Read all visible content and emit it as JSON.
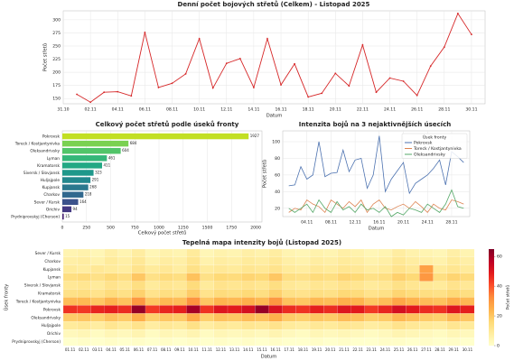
{
  "chart_data": [
    {
      "type": "line",
      "title": "Denní počet bojových střetů (Celkem) - Listopad 2025",
      "xlabel": "Datum",
      "ylabel": "Počet střetů",
      "color": "#d62728",
      "markers": true,
      "grid": true,
      "x": [
        "01.11",
        "02.11",
        "03.11",
        "04.11",
        "05.11",
        "06.11",
        "07.11",
        "08.11",
        "09.11",
        "10.11",
        "11.11",
        "12.11",
        "13.11",
        "14.11",
        "15.11",
        "16.11",
        "17.11",
        "18.11",
        "19.11",
        "20.11",
        "21.11",
        "22.11",
        "23.11",
        "24.11",
        "25.11",
        "26.11",
        "27.11",
        "28.11",
        "29.11",
        "30.11"
      ],
      "values": [
        158,
        143,
        162,
        163,
        155,
        276,
        171,
        179,
        197,
        264,
        170,
        217,
        226,
        171,
        264,
        176,
        216,
        153,
        160,
        198,
        174,
        252,
        162,
        189,
        183,
        156,
        212,
        248,
        312,
        272
      ],
      "xlim": [
        "31.10",
        "01.12"
      ],
      "xticks": [
        "31.10",
        "02.11",
        "04.11",
        "06.11",
        "08.11",
        "10.11",
        "12.11",
        "14.11",
        "16.11",
        "18.11",
        "20.11",
        "22.11",
        "24.11",
        "26.11",
        "28.11",
        "30.11"
      ],
      "ylim": [
        140,
        317
      ],
      "yticks": [
        150,
        175,
        200,
        225,
        250,
        275,
        300
      ]
    },
    {
      "type": "bar",
      "orientation": "horizontal",
      "title": "Celkový počet střetů podle úseků fronty",
      "xlabel": "Celkový počet střetů",
      "grid": true,
      "categories": [
        "Pokrovsk",
        "Toreck / Kostjantynivka",
        "Oleksandrivsky",
        "Lyman",
        "Kramatorsk",
        "Siversk / Slovjansk",
        "Huljajpole",
        "Kupjansk",
        "Charkov",
        "Sever / Kursk",
        "Orichiv",
        "Prydniprovskyj (Cherson)"
      ],
      "values": [
        1927,
        684,
        604,
        461,
        411,
        323,
        291,
        268,
        218,
        164,
        94,
        15
      ],
      "colors": [
        "#c2df23",
        "#7ad151",
        "#52c569",
        "#35b779",
        "#22a884",
        "#1f988b",
        "#23888e",
        "#2a788e",
        "#31688e",
        "#3b528b",
        "#443983",
        "#482173"
      ],
      "xlim": [
        0,
        2065
      ],
      "xticks": [
        0,
        250,
        500,
        750,
        1000,
        1250,
        1500,
        1750,
        2000
      ]
    },
    {
      "type": "line",
      "title": "Intenzita bojů na 3 nejaktivnějších úsecích",
      "xlabel": "Datum",
      "ylabel": "Počet střetů",
      "grid": true,
      "legend": "upper right",
      "legend_title": "Úsek fronty",
      "x": [
        "01.11",
        "02.11",
        "03.11",
        "04.11",
        "05.11",
        "06.11",
        "07.11",
        "08.11",
        "09.11",
        "10.11",
        "11.11",
        "12.11",
        "13.11",
        "14.11",
        "15.11",
        "16.11",
        "17.11",
        "18.11",
        "19.11",
        "20.11",
        "21.11",
        "22.11",
        "23.11",
        "24.11",
        "25.11",
        "26.11",
        "27.11",
        "28.11",
        "29.11",
        "30.11"
      ],
      "series": [
        {
          "name": "Pokrovsk",
          "color": "#4c72b0",
          "values": [
            47,
            48,
            70,
            55,
            60,
            100,
            58,
            62,
            63,
            90,
            64,
            78,
            80,
            44,
            60,
            107,
            40,
            55,
            65,
            75,
            38,
            50,
            55,
            60,
            68,
            78,
            48,
            88,
            82,
            75
          ]
        },
        {
          "name": "Toreck / Kostjantynivka",
          "color": "#dd8452",
          "values": [
            15,
            20,
            18,
            30,
            25,
            22,
            15,
            30,
            25,
            20,
            28,
            22,
            30,
            15,
            25,
            30,
            20,
            18,
            22,
            25,
            20,
            28,
            22,
            15,
            25,
            20,
            18,
            30,
            28,
            25
          ]
        },
        {
          "name": "Oleksandrivsky",
          "color": "#55a868",
          "values": [
            20,
            15,
            20,
            25,
            15,
            30,
            20,
            15,
            28,
            18,
            22,
            15,
            25,
            18,
            20,
            15,
            22,
            10,
            15,
            12,
            20,
            18,
            15,
            25,
            20,
            15,
            25,
            42,
            22,
            20
          ]
        }
      ],
      "xlim": [
        "31.10",
        "01.12"
      ],
      "xticks": [
        "04.11",
        "08.11",
        "12.11",
        "16.11",
        "20.11",
        "24.11",
        "28.11"
      ],
      "ylim": [
        10,
        113
      ],
      "yticks": [
        20,
        40,
        60,
        80,
        100
      ]
    },
    {
      "type": "heatmap",
      "title": "Tepelná mapa intenzity bojů (Listopad 2025)",
      "xlabel": "Datum",
      "ylabel": "Úsek fronty",
      "colorbar_label": "Počet střetů",
      "colorscale": [
        "#ffffcc",
        "#ffeda0",
        "#fed976",
        "#feb24c",
        "#fd8d3c",
        "#fc4e2a",
        "#e31a1c",
        "#bd0026",
        "#800026"
      ],
      "x": [
        "01.11",
        "02.11",
        "03.11",
        "04.11",
        "05.11",
        "06.11",
        "07.11",
        "08.11",
        "09.11",
        "10.11",
        "11.11",
        "12.11",
        "13.11",
        "14.11",
        "15.11",
        "16.11",
        "17.11",
        "18.11",
        "19.11",
        "20.11",
        "21.11",
        "22.11",
        "23.11",
        "24.11",
        "25.11",
        "26.11",
        "27.11",
        "28.11",
        "29.11",
        "30.11"
      ],
      "y": [
        "Sever / Kursk",
        "Charkov",
        "Kupjansk",
        "Lyman",
        "Siversk / Slovjansk",
        "Kramatorsk",
        "Toreck / Kostjantynivka",
        "Pokrovsk",
        "Oleksandrivsky",
        "Huljajpole",
        "Orichiv",
        "Prydniprovskyj (Cherson)"
      ],
      "values": [
        [
          5,
          6,
          4,
          7,
          5,
          8,
          4,
          6,
          5,
          9,
          4,
          6,
          5,
          7,
          6,
          8,
          5,
          4,
          6,
          5,
          7,
          6,
          4,
          5,
          8,
          6,
          5,
          4,
          7,
          5
        ],
        [
          7,
          8,
          6,
          9,
          7,
          10,
          6,
          8,
          7,
          11,
          6,
          8,
          7,
          9,
          8,
          10,
          7,
          6,
          8,
          7,
          9,
          8,
          6,
          7,
          10,
          8,
          7,
          6,
          9,
          7
        ],
        [
          9,
          8,
          10,
          9,
          8,
          12,
          9,
          10,
          8,
          13,
          9,
          10,
          9,
          11,
          10,
          12,
          9,
          8,
          10,
          9,
          11,
          10,
          8,
          9,
          12,
          10,
          28,
          9,
          11,
          9
        ],
        [
          14,
          15,
          13,
          16,
          14,
          20,
          13,
          15,
          14,
          21,
          13,
          16,
          15,
          17,
          16,
          20,
          14,
          13,
          15,
          14,
          17,
          16,
          13,
          14,
          18,
          16,
          30,
          14,
          17,
          15
        ],
        [
          10,
          11,
          9,
          12,
          10,
          14,
          9,
          11,
          10,
          15,
          9,
          12,
          11,
          12,
          11,
          14,
          10,
          9,
          11,
          10,
          12,
          11,
          9,
          10,
          13,
          11,
          10,
          9,
          12,
          10
        ],
        [
          13,
          14,
          12,
          15,
          13,
          18,
          12,
          14,
          13,
          19,
          12,
          15,
          14,
          16,
          14,
          18,
          13,
          12,
          14,
          13,
          16,
          15,
          12,
          13,
          17,
          15,
          14,
          13,
          16,
          14
        ],
        [
          22,
          23,
          20,
          24,
          21,
          30,
          20,
          23,
          22,
          31,
          20,
          24,
          23,
          25,
          23,
          30,
          21,
          20,
          23,
          22,
          25,
          24,
          20,
          22,
          27,
          24,
          22,
          21,
          25,
          23
        ],
        [
          45,
          44,
          47,
          48,
          46,
          62,
          44,
          47,
          48,
          60,
          45,
          50,
          49,
          52,
          62,
          51,
          46,
          45,
          48,
          46,
          50,
          49,
          44,
          47,
          52,
          49,
          46,
          45,
          50,
          48
        ],
        [
          19,
          20,
          18,
          21,
          19,
          25,
          18,
          20,
          19,
          26,
          18,
          21,
          20,
          22,
          21,
          25,
          19,
          18,
          20,
          19,
          22,
          21,
          18,
          19,
          23,
          21,
          19,
          18,
          22,
          20
        ],
        [
          9,
          10,
          8,
          11,
          9,
          12,
          8,
          10,
          9,
          13,
          8,
          10,
          9,
          11,
          10,
          12,
          9,
          8,
          10,
          9,
          11,
          10,
          8,
          9,
          12,
          10,
          9,
          8,
          11,
          9
        ],
        [
          3,
          4,
          2,
          4,
          3,
          5,
          2,
          4,
          3,
          5,
          2,
          4,
          3,
          4,
          3,
          5,
          3,
          2,
          4,
          3,
          4,
          3,
          2,
          3,
          5,
          4,
          3,
          2,
          4,
          3
        ],
        [
          0,
          1,
          0,
          1,
          0,
          1,
          0,
          1,
          0,
          1,
          0,
          1,
          0,
          1,
          0,
          1,
          0,
          0,
          1,
          0,
          1,
          0,
          0,
          1,
          1,
          0,
          1,
          0,
          1,
          0
        ]
      ],
      "zlim": [
        0,
        65
      ],
      "zticks": [
        0,
        20,
        40,
        60
      ]
    }
  ]
}
